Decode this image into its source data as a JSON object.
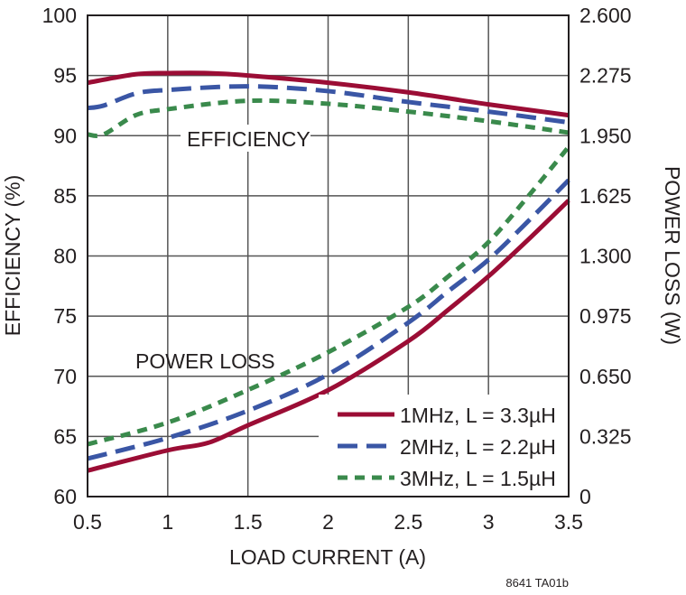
{
  "chart_data": {
    "type": "line",
    "xlabel": "LOAD CURRENT (A)",
    "ylabel": "EFFICIENCY (%)",
    "y2label": "POWER LOSS (W)",
    "xlim": [
      0.5,
      3.5
    ],
    "ylim": [
      60,
      100
    ],
    "y2lim": [
      0,
      2.6
    ],
    "xticks": [
      "0.5",
      "1",
      "1.5",
      "2",
      "2.5",
      "3",
      "3.5"
    ],
    "yticks": [
      "60",
      "65",
      "70",
      "75",
      "80",
      "85",
      "90",
      "95",
      "100"
    ],
    "y2ticks": [
      "0",
      "0.325",
      "0.650",
      "0.975",
      "1.300",
      "1.625",
      "1.950",
      "2.275",
      "2.600"
    ],
    "grid": true,
    "legend_position": "bottom-right",
    "annotations": {
      "efficiency": "EFFICIENCY",
      "power_loss": "POWER LOSS"
    },
    "footnote": "8641 TA01b",
    "series": [
      {
        "name": "1MHz, L = 3.3µH",
        "color": "#9b0d35",
        "style": "solid",
        "efficiency": {
          "x": [
            0.5,
            0.8,
            1.0,
            1.25,
            1.5,
            2.0,
            2.5,
            3.0,
            3.5
          ],
          "y": [
            94.4,
            95.1,
            95.2,
            95.2,
            95.0,
            94.4,
            93.6,
            92.6,
            91.7
          ]
        },
        "power_loss": {
          "x": [
            0.5,
            1.0,
            1.25,
            1.5,
            2.0,
            2.5,
            2.75,
            3.0,
            3.25,
            3.5
          ],
          "y": [
            0.14,
            0.25,
            0.29,
            0.385,
            0.575,
            0.84,
            1.01,
            1.19,
            1.39,
            1.6
          ]
        }
      },
      {
        "name": "2MHz, L = 2.2µH",
        "color": "#3a56a5",
        "style": "long-dash",
        "efficiency": {
          "x": [
            0.5,
            0.6,
            0.8,
            1.0,
            1.5,
            2.0,
            2.5,
            3.0,
            3.5
          ],
          "y": [
            92.3,
            92.5,
            93.5,
            93.8,
            94.1,
            93.7,
            92.8,
            92.0,
            91.1
          ]
        },
        "power_loss": {
          "x": [
            0.5,
            1.0,
            1.5,
            2.0,
            2.5,
            2.75,
            3.0,
            3.25,
            3.5
          ],
          "y": [
            0.205,
            0.317,
            0.464,
            0.66,
            0.94,
            1.11,
            1.28,
            1.49,
            1.71
          ]
        }
      },
      {
        "name": "3MHz, L = 1.5µH",
        "color": "#3a8a4c",
        "style": "short-dash",
        "efficiency": {
          "x": [
            0.5,
            0.6,
            0.8,
            1.0,
            1.5,
            2.0,
            2.5,
            3.0,
            3.5
          ],
          "y": [
            90.1,
            90.1,
            91.7,
            92.2,
            92.9,
            92.65,
            92.0,
            91.2,
            90.25
          ]
        },
        "power_loss": {
          "x": [
            0.5,
            1.0,
            1.5,
            2.0,
            2.5,
            2.75,
            3.0,
            3.25,
            3.5
          ],
          "y": [
            0.283,
            0.4,
            0.576,
            0.78,
            1.025,
            1.19,
            1.375,
            1.625,
            1.89
          ]
        }
      }
    ]
  }
}
